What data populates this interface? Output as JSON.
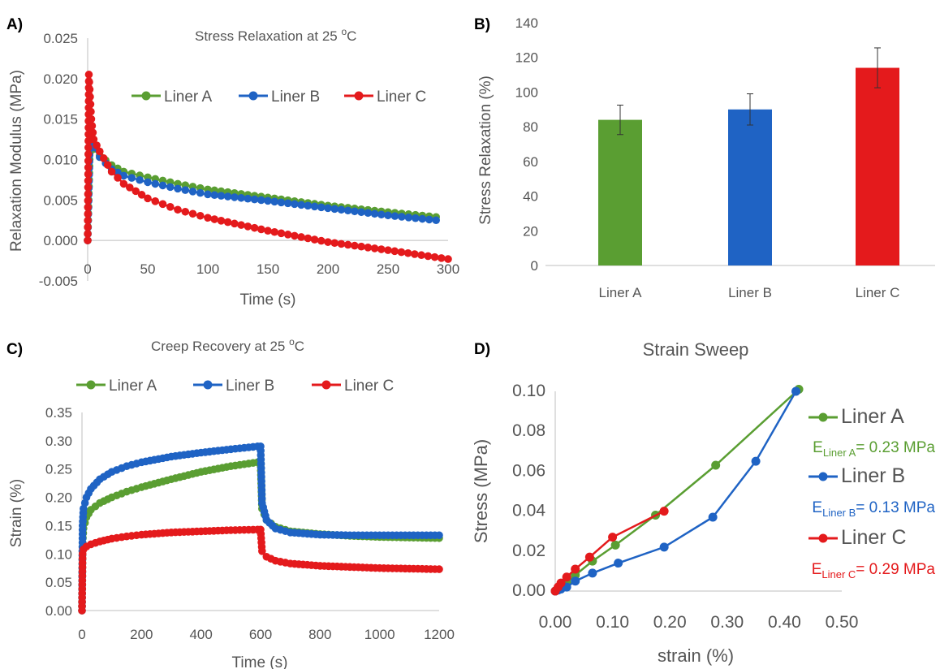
{
  "colors": {
    "Liner A": "#5a9e32",
    "Liner B": "#1f63c4",
    "Liner C": "#e41a1c"
  },
  "chart_data": [
    {
      "panel": "A)",
      "type": "line",
      "title": "Stress Relaxation at 25 ",
      "title_sup": "o",
      "title_suffix": "C",
      "xlabel": "Time (s)",
      "ylabel": "Relaxation Modulus (MPa)",
      "xlim": [
        0,
        300
      ],
      "ylim": [
        -0.005,
        0.025
      ],
      "xticks": [
        "0",
        "50",
        "100",
        "150",
        "200",
        "250",
        "300"
      ],
      "yticks": [
        "-0.005",
        "0.000",
        "0.005",
        "0.010",
        "0.015",
        "0.020",
        "0.025"
      ],
      "grid": false,
      "legend": "top-right",
      "series": [
        {
          "name": "Liner A",
          "x": [
            0,
            2,
            5,
            10,
            20,
            30,
            50,
            75,
            100,
            150,
            200,
            250,
            290
          ],
          "y": [
            0,
            0.0125,
            0.0113,
            0.0105,
            0.0093,
            0.0085,
            0.0078,
            0.007,
            0.0063,
            0.0053,
            0.0043,
            0.0035,
            0.0029
          ]
        },
        {
          "name": "Liner B",
          "x": [
            0,
            2,
            5,
            10,
            20,
            30,
            50,
            75,
            100,
            150,
            200,
            250,
            290
          ],
          "y": [
            0,
            0.0138,
            0.0115,
            0.0103,
            0.0088,
            0.008,
            0.0072,
            0.0064,
            0.0057,
            0.0049,
            0.004,
            0.0031,
            0.0025
          ]
        },
        {
          "name": "Liner C",
          "x": [
            0,
            1,
            3,
            5,
            10,
            20,
            30,
            50,
            75,
            100,
            150,
            200,
            250,
            300
          ],
          "y": [
            0,
            0.0205,
            0.015,
            0.0125,
            0.011,
            0.0085,
            0.007,
            0.0052,
            0.0038,
            0.0028,
            0.0012,
            -0.0002,
            -0.0012,
            -0.0023
          ]
        }
      ]
    },
    {
      "panel": "B)",
      "type": "bar",
      "ylabel": "Stress Relaxation (%)",
      "ylim": [
        0,
        140
      ],
      "yticks": [
        "0",
        "20",
        "40",
        "60",
        "80",
        "100",
        "120",
        "140"
      ],
      "categories": [
        "Liner A",
        "Liner B",
        "Liner C"
      ],
      "values": [
        84,
        90,
        114
      ],
      "errors": [
        8.5,
        9,
        11.5
      ],
      "grid": false
    },
    {
      "panel": "C)",
      "type": "line",
      "title": "Creep Recovery at 25 ",
      "title_sup": "o",
      "title_suffix": "C",
      "xlabel": "Time (s)",
      "ylabel": "Strain (%)",
      "xlim": [
        0,
        1200
      ],
      "ylim": [
        0,
        0.35
      ],
      "xticks": [
        "0",
        "200",
        "400",
        "600",
        "800",
        "1000",
        "1200"
      ],
      "yticks": [
        "0.00",
        "0.05",
        "0.10",
        "0.15",
        "0.20",
        "0.25",
        "0.30",
        "0.35"
      ],
      "grid": false,
      "legend": "top",
      "series": [
        {
          "name": "Liner A",
          "x": [
            0,
            2,
            5,
            15,
            30,
            60,
            100,
            150,
            200,
            300,
            400,
            500,
            590,
            600,
            605,
            620,
            650,
            700,
            800,
            900,
            1000,
            1100,
            1200
          ],
          "y": [
            0,
            0.12,
            0.145,
            0.165,
            0.178,
            0.19,
            0.2,
            0.21,
            0.218,
            0.232,
            0.245,
            0.255,
            0.262,
            0.262,
            0.18,
            0.16,
            0.148,
            0.14,
            0.135,
            0.132,
            0.13,
            0.129,
            0.128
          ]
        },
        {
          "name": "Liner B",
          "x": [
            0,
            2,
            5,
            15,
            30,
            60,
            100,
            150,
            200,
            300,
            400,
            500,
            590,
            600,
            605,
            620,
            650,
            700,
            800,
            900,
            1000,
            1100,
            1200
          ],
          "y": [
            0,
            0.15,
            0.18,
            0.2,
            0.215,
            0.232,
            0.245,
            0.255,
            0.262,
            0.272,
            0.279,
            0.285,
            0.29,
            0.29,
            0.19,
            0.16,
            0.145,
            0.138,
            0.134,
            0.133,
            0.133,
            0.133,
            0.133
          ]
        },
        {
          "name": "Liner C",
          "x": [
            0,
            2,
            5,
            15,
            30,
            60,
            100,
            150,
            200,
            300,
            400,
            500,
            590,
            600,
            605,
            620,
            650,
            700,
            800,
            900,
            1000,
            1100,
            1200
          ],
          "y": [
            0,
            0.1,
            0.108,
            0.113,
            0.117,
            0.122,
            0.127,
            0.131,
            0.134,
            0.138,
            0.14,
            0.142,
            0.143,
            0.143,
            0.105,
            0.095,
            0.088,
            0.083,
            0.079,
            0.077,
            0.075,
            0.074,
            0.073
          ]
        }
      ]
    },
    {
      "panel": "D)",
      "type": "line",
      "title": "Strain Sweep",
      "xlabel": "strain (%)",
      "ylabel": "Stress (MPa)",
      "xlim": [
        0,
        0.5
      ],
      "ylim": [
        0,
        0.1
      ],
      "xticks": [
        "0.00",
        "0.10",
        "0.20",
        "0.30",
        "0.40",
        "0.50"
      ],
      "yticks": [
        "0.00",
        "0.02",
        "0.04",
        "0.06",
        "0.08",
        "0.10"
      ],
      "grid": false,
      "legend": "right",
      "series": [
        {
          "name": "Liner A",
          "x": [
            0,
            0.005,
            0.01,
            0.02,
            0.035,
            0.065,
            0.105,
            0.175,
            0.28,
            0.425
          ],
          "y": [
            0,
            0.001,
            0.002,
            0.004,
            0.008,
            0.015,
            0.023,
            0.038,
            0.063,
            0.101
          ]
        },
        {
          "name": "Liner B",
          "x": [
            0,
            0.005,
            0.01,
            0.02,
            0.035,
            0.065,
            0.11,
            0.19,
            0.275,
            0.35,
            0.42
          ],
          "y": [
            0,
            0.0005,
            0.001,
            0.002,
            0.005,
            0.009,
            0.014,
            0.022,
            0.037,
            0.065,
            0.1
          ]
        },
        {
          "name": "Liner C",
          "x": [
            0,
            0.005,
            0.01,
            0.02,
            0.035,
            0.06,
            0.1,
            0.19
          ],
          "y": [
            0,
            0.002,
            0.004,
            0.007,
            0.011,
            0.017,
            0.027,
            0.04
          ]
        }
      ],
      "annotations": [
        {
          "sym": "E",
          "sub": "Liner A",
          "text": "= 0.23 MPa",
          "series": "Liner A"
        },
        {
          "sym": "E",
          "sub": "Liner B",
          "text": "= 0.13 MPa",
          "series": "Liner B"
        },
        {
          "sym": "E",
          "sub": "Liner C",
          "text": "= 0.29 MPa",
          "series": "Liner C"
        }
      ]
    }
  ]
}
